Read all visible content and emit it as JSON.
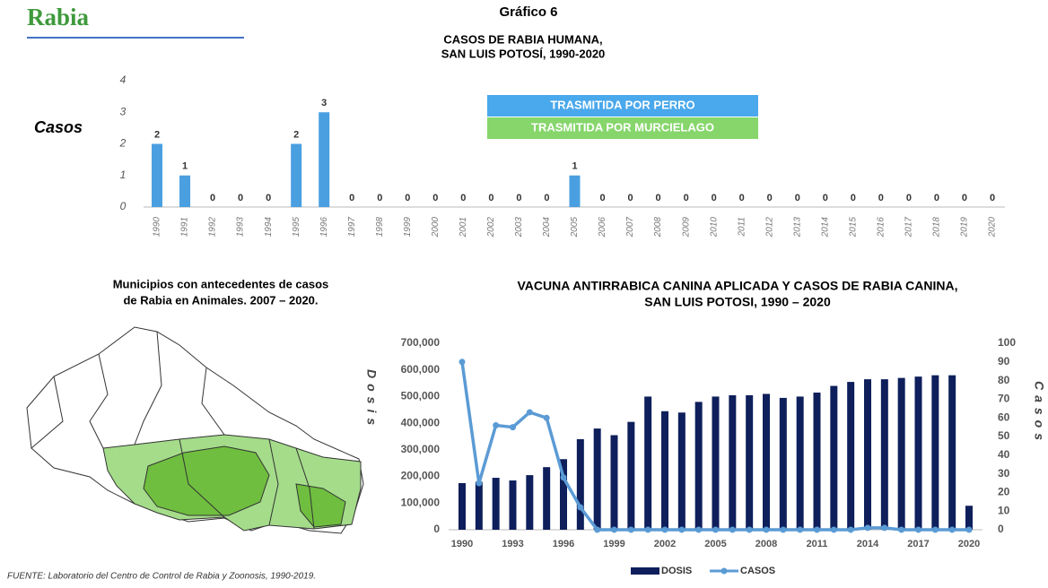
{
  "header": {
    "title": "Rabia",
    "chart_number": "Gráfico 6"
  },
  "chart_data": [
    {
      "type": "bar",
      "title": [
        "CASOS DE RABIA HUMANA,",
        "SAN LUIS POTOSÍ, 1990-2020"
      ],
      "ylabel": "Casos",
      "categories": [
        "1990",
        "1991",
        "1992",
        "1993",
        "1994",
        "1995",
        "1996",
        "1997",
        "1998",
        "1999",
        "2000",
        "2001",
        "2002",
        "2003",
        "2004",
        "2005",
        "2006",
        "2007",
        "2008",
        "2009",
        "2010",
        "2011",
        "2012",
        "2013",
        "2014",
        "2015",
        "2016",
        "2017",
        "2018",
        "2019",
        "2020"
      ],
      "values": [
        2,
        1,
        0,
        0,
        0,
        2,
        3,
        0,
        0,
        0,
        0,
        0,
        0,
        0,
        0,
        1,
        0,
        0,
        0,
        0,
        0,
        0,
        0,
        0,
        0,
        0,
        0,
        0,
        0,
        0,
        0
      ],
      "color": "#4a9fe0",
      "ylim": [
        0,
        4
      ],
      "yticks": [
        0,
        1,
        2,
        3,
        4
      ],
      "legend": [
        {
          "name": "TRASMITIDA POR PERRO",
          "color": "#4aa8ec"
        },
        {
          "name": "TRASMITIDA POR MURCIELAGO",
          "color": "#86d66b"
        }
      ]
    },
    {
      "type": "bar-line",
      "title": [
        "VACUNA ANTIRRABICA CANINA APLICADA Y CASOS DE RABIA CANINA,",
        "SAN LUIS POTOSI, 1990 – 2020"
      ],
      "ylabel": "Dosis",
      "y2label": "Casos",
      "categories": [
        "1990",
        null,
        null,
        "1993",
        null,
        null,
        "1996",
        null,
        null,
        "1999",
        null,
        null,
        "2002",
        null,
        null,
        "2005",
        null,
        null,
        "2008",
        null,
        null,
        "2011",
        null,
        null,
        "2014",
        null,
        null,
        "2017",
        null,
        null,
        "2020"
      ],
      "series": [
        {
          "name": "DOSIS",
          "color": "#0e1f5b",
          "values": [
            175000,
            180000,
            195000,
            185000,
            205000,
            235000,
            265000,
            340000,
            380000,
            355000,
            405000,
            500000,
            445000,
            440000,
            480000,
            500000,
            505000,
            505000,
            510000,
            495000,
            500000,
            515000,
            540000,
            555000,
            565000,
            565000,
            570000,
            575000,
            580000,
            580000,
            90000
          ]
        },
        {
          "name": "CASOS",
          "color": "#5b9bd5",
          "axis": "y2",
          "values": [
            90,
            25,
            56,
            55,
            63,
            60,
            28,
            12,
            0,
            0,
            0,
            0,
            0,
            0,
            0,
            0,
            0,
            0,
            0,
            0,
            0,
            0,
            0,
            0,
            1,
            1,
            0,
            0,
            0,
            0,
            0
          ]
        }
      ],
      "ylim": [
        0,
        700000
      ],
      "yticks": [
        0,
        {
          "value": 100000,
          "label": "100,000"
        },
        {
          "value": 200000,
          "label": "200,000"
        },
        {
          "value": 300000,
          "label": "300,000"
        },
        {
          "value": 400000,
          "label": "400,000"
        },
        {
          "value": 500000,
          "label": "500,000"
        },
        {
          "value": 600000,
          "label": "600,000"
        },
        {
          "value": 700000,
          "label": "700,000"
        }
      ],
      "y2lim": [
        0,
        100
      ],
      "y2ticks": [
        0,
        10,
        20,
        30,
        40,
        50,
        60,
        70,
        80,
        90,
        100
      ]
    }
  ],
  "map": {
    "title": [
      "Municipios con antecedentes de casos",
      "de Rabia en Animales. 2007 – 2020."
    ]
  },
  "footer": "FUENTE: Laboratorio del Centro de Control de Rabia y Zoonosis, 1990-2019."
}
